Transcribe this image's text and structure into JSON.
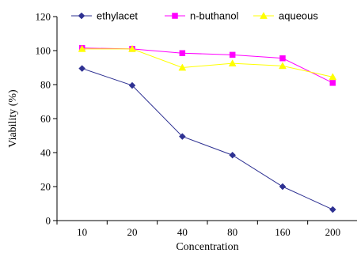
{
  "chart_data": {
    "type": "line",
    "title": "",
    "xlabel": "Concentration",
    "ylabel": "Viability (%)",
    "categories": [
      "10",
      "20",
      "40",
      "80",
      "160",
      "200"
    ],
    "ylim": [
      0,
      120
    ],
    "yticks": [
      "0",
      "20",
      "40",
      "60",
      "80",
      "100",
      "120"
    ],
    "grid": false,
    "legend_position": "top",
    "series": [
      {
        "name": "ethylacet",
        "color": "#2e3192",
        "marker": "diamond",
        "values": [
          89.5,
          79.5,
          49.5,
          38.5,
          20,
          6.5
        ]
      },
      {
        "name": "n-buthanol",
        "color": "#ff00ff",
        "marker": "square",
        "values": [
          101.5,
          101,
          98.5,
          97.5,
          95.5,
          81
        ]
      },
      {
        "name": "aqueous",
        "color": "#ffff00",
        "marker": "triangle",
        "values": [
          101,
          101,
          90,
          92.5,
          91,
          84.5
        ]
      }
    ]
  }
}
